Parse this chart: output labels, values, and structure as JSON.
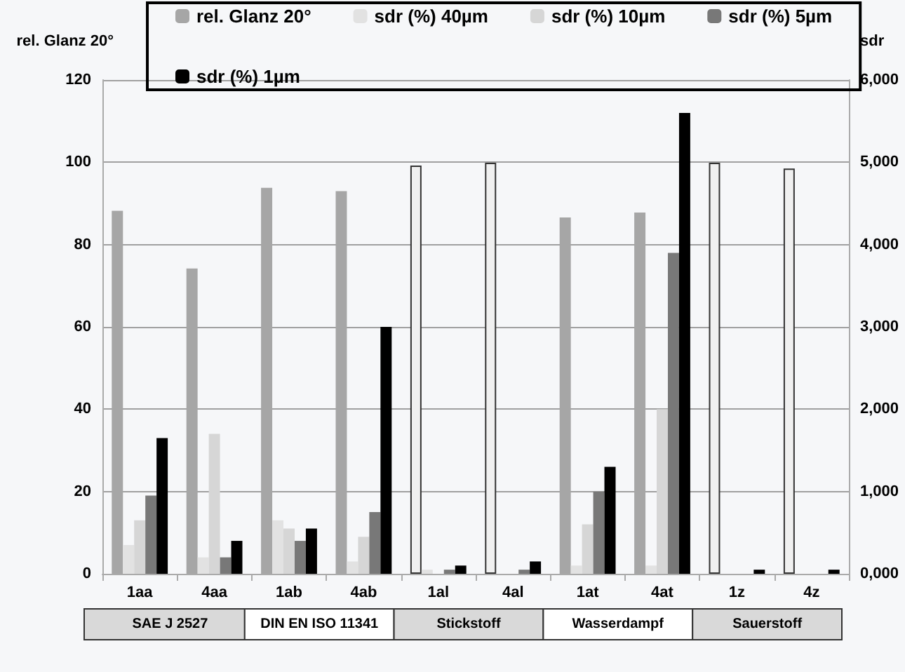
{
  "chart_data": {
    "type": "bar",
    "ylabel": "rel. Glanz 20°",
    "y2label": "sdr",
    "categories": [
      "1aa",
      "4aa",
      "1ab",
      "4ab",
      "1al",
      "4al",
      "1at",
      "4at",
      "1z",
      "4z"
    ],
    "series": [
      {
        "name": "rel. Glanz 20°",
        "colors": [
          "#a6a6a6",
          "#a6a6a6",
          "#a6a6a6",
          "#a6a6a6",
          "#f0f0f0",
          "#f0f0f0",
          "#a6a6a6",
          "#a6a6a6",
          "#f0f0f0",
          "#f0f0f0"
        ],
        "values": [
          88.2,
          74.2,
          93.8,
          93,
          99.2,
          99.9,
          86.6,
          87.8,
          99.9,
          98.5
        ]
      },
      {
        "name": "sdr (%) 40µm",
        "color": "#e2e2e2",
        "axis": "y2",
        "values": [
          350,
          200,
          650,
          150,
          50,
          0,
          100,
          100,
          0,
          0
        ]
      },
      {
        "name": "sdr (%) 10µm",
        "color": "#d6d6d6",
        "axis": "y2",
        "values": [
          650,
          1700,
          550,
          450,
          0,
          0,
          600,
          2000,
          0,
          0
        ]
      },
      {
        "name": "sdr (%) 5µm",
        "color": "#787878",
        "axis": "y2",
        "values": [
          950,
          200,
          400,
          750,
          50,
          50,
          1000,
          3900,
          null,
          null
        ]
      },
      {
        "name": "sdr (%) 1µm",
        "color": "#000000",
        "axis": "y2",
        "values": [
          1650,
          400,
          550,
          3000,
          100,
          150,
          1300,
          5600,
          50,
          50
        ]
      }
    ],
    "ylim": [
      0,
      120
    ],
    "yticks": [
      0,
      20,
      40,
      60,
      80,
      100,
      120
    ],
    "y2lim": [
      0,
      6000
    ],
    "y2ticks": [
      {
        "value": 0,
        "label": "0,000"
      },
      {
        "value": 1000,
        "label": "1,000"
      },
      {
        "value": 2000,
        "label": "2,000"
      },
      {
        "value": 3000,
        "label": "3,000"
      },
      {
        "value": 4000,
        "label": "4,000"
      },
      {
        "value": 5000,
        "label": "5,000"
      },
      {
        "value": 6000,
        "label": "6,000"
      }
    ],
    "grid": "y",
    "legend": "top",
    "annotations": [
      "SAE J 2527",
      "DIN EN ISO 11341",
      "Stickstoff",
      "Wasserdampf",
      "Sauerstoff"
    ]
  }
}
